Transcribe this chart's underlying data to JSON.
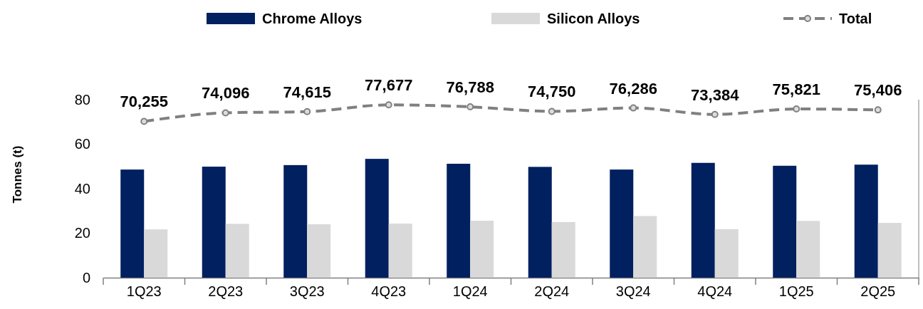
{
  "chart_data": {
    "type": "bar",
    "ylabel": "Tonnes (t)",
    "categories": [
      "1Q23",
      "2Q23",
      "3Q23",
      "4Q23",
      "1Q24",
      "2Q24",
      "3Q24",
      "4Q24",
      "1Q25",
      "2Q25"
    ],
    "series": [
      {
        "name": "Chrome Alloys",
        "color": "#002060",
        "values": [
          48.6,
          49.9,
          50.6,
          53.4,
          51.2,
          49.8,
          48.6,
          51.6,
          50.3,
          50.8
        ]
      },
      {
        "name": "Silicon Alloys",
        "color": "#d9d9d9",
        "values": [
          21.7,
          24.2,
          24.0,
          24.3,
          25.6,
          25.0,
          27.7,
          21.8,
          25.5,
          24.6
        ]
      },
      {
        "name": "Total",
        "type": "line",
        "axis": "y2",
        "color": "#808080",
        "line_style": "dashed",
        "marker": "circle",
        "values": [
          70255,
          74096,
          74615,
          77677,
          76788,
          74750,
          76286,
          73384,
          75821,
          75406
        ],
        "value_labels": [
          "70,255",
          "74,096",
          "74,615",
          "77,677",
          "76,788",
          "74,750",
          "76,286",
          "73,384",
          "75,821",
          "75,406"
        ]
      }
    ],
    "ylim": [
      0,
      80
    ],
    "y2lim": [
      0,
      80000
    ],
    "yticks": [
      0,
      20,
      40,
      60,
      80
    ],
    "grid": false,
    "legend": "top"
  }
}
